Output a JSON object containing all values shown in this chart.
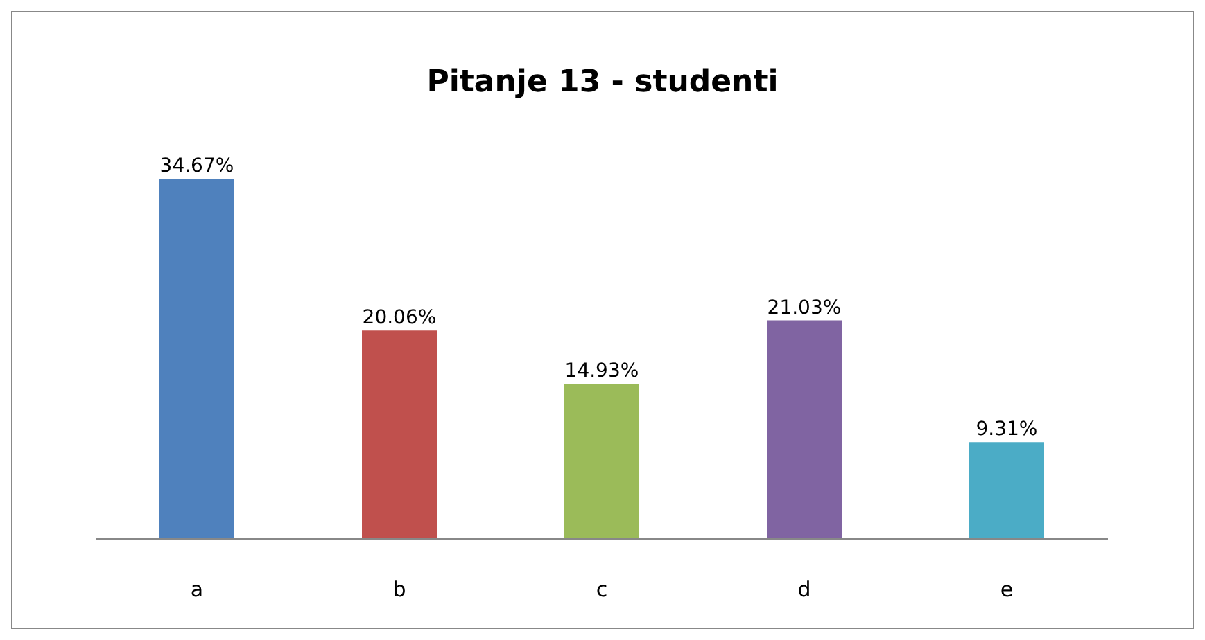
{
  "chart_data": {
    "type": "bar",
    "title": "Pitanje 13 - studenti",
    "categories": [
      "a",
      "b",
      "c",
      "d",
      "e"
    ],
    "values": [
      34.67,
      20.06,
      14.93,
      21.03,
      9.31
    ],
    "value_labels": [
      "34.67%",
      "20.06%",
      "14.93%",
      "21.03%",
      "9.31%"
    ],
    "colors": [
      "#4f81bd",
      "#c0504d",
      "#9bbb59",
      "#8064a2",
      "#4bacc6"
    ]
  }
}
